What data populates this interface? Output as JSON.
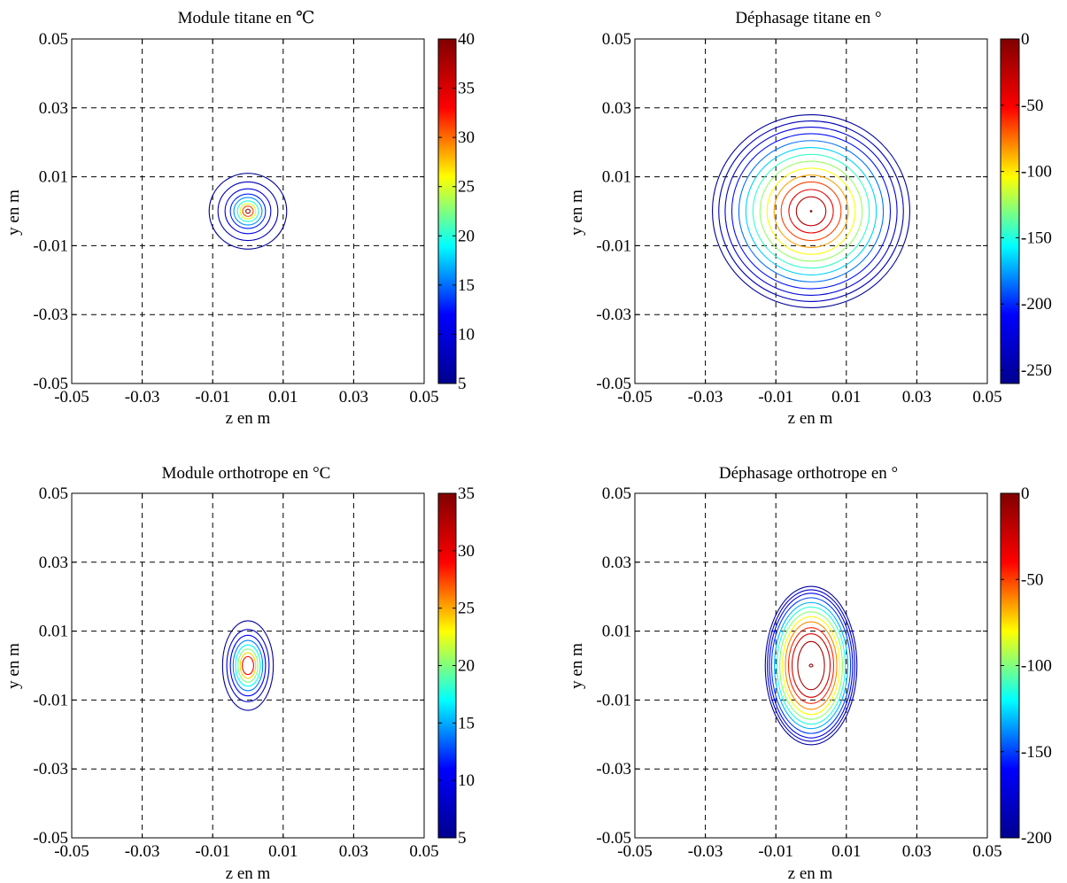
{
  "figure": {
    "colormap": "jet",
    "colormap_stops": [
      "#00008f",
      "#0000ff",
      "#00ffff",
      "#ffff00",
      "#ff0000",
      "#800000"
    ]
  },
  "chart_data": [
    {
      "type": "contour",
      "title": "Module titane en ℃",
      "xlabel": "z en m",
      "ylabel": "y en m",
      "xlim": [
        -0.05,
        0.05
      ],
      "ylim": [
        -0.05,
        0.05
      ],
      "xticks": [
        "-0.05",
        "-0.03",
        "-0.01",
        "0.01",
        "0.03",
        "0.05"
      ],
      "yticks": [
        "-0.05",
        "-0.03",
        "-0.01",
        "0.01",
        "0.03",
        "0.05"
      ],
      "grid": true,
      "colorbar": {
        "min": 5,
        "max": 40,
        "ticks": [
          "40",
          "35",
          "30",
          "25",
          "20",
          "15",
          "10",
          "5"
        ],
        "tick_values": [
          40,
          35,
          30,
          25,
          20,
          15,
          10,
          5
        ]
      },
      "contours": [
        {
          "level": 5,
          "rz": 0.011,
          "ry": 0.011
        },
        {
          "level": 7.5,
          "rz": 0.0085,
          "ry": 0.0085
        },
        {
          "level": 10,
          "rz": 0.0065,
          "ry": 0.0065
        },
        {
          "level": 13,
          "rz": 0.005,
          "ry": 0.005
        },
        {
          "level": 16,
          "rz": 0.004,
          "ry": 0.004
        },
        {
          "level": 20,
          "rz": 0.003,
          "ry": 0.003
        },
        {
          "level": 25,
          "rz": 0.0022,
          "ry": 0.0022
        },
        {
          "level": 31,
          "rz": 0.0015,
          "ry": 0.0015
        },
        {
          "level": 39,
          "rz": 0.0006,
          "ry": 0.0006
        }
      ]
    },
    {
      "type": "contour",
      "title": "Déphasage titane en °",
      "xlabel": "z en m",
      "ylabel": "y en m",
      "xlim": [
        -0.05,
        0.05
      ],
      "ylim": [
        -0.05,
        0.05
      ],
      "xticks": [
        "-0.05",
        "-0.03",
        "-0.01",
        "0.01",
        "0.03",
        "0.05"
      ],
      "yticks": [
        "-0.05",
        "-0.03",
        "-0.01",
        "0.01",
        "0.03",
        "0.05"
      ],
      "grid": true,
      "colorbar": {
        "min": -260,
        "max": 0,
        "ticks": [
          "0",
          "-50",
          "-100",
          "-150",
          "-200",
          "-250"
        ],
        "tick_values": [
          0,
          -50,
          -100,
          -150,
          -200,
          -250
        ]
      },
      "contours": [
        {
          "level": -255,
          "rz": 0.028,
          "ry": 0.028
        },
        {
          "level": -240,
          "rz": 0.0262,
          "ry": 0.0262
        },
        {
          "level": -225,
          "rz": 0.0244,
          "ry": 0.0244
        },
        {
          "level": -205,
          "rz": 0.0225,
          "ry": 0.0225
        },
        {
          "level": -185,
          "rz": 0.0205,
          "ry": 0.0205
        },
        {
          "level": -165,
          "rz": 0.0185,
          "ry": 0.0185
        },
        {
          "level": -145,
          "rz": 0.0165,
          "ry": 0.0165
        },
        {
          "level": -125,
          "rz": 0.0145,
          "ry": 0.0145
        },
        {
          "level": -105,
          "rz": 0.0125,
          "ry": 0.0125
        },
        {
          "level": -85,
          "rz": 0.0105,
          "ry": 0.0105
        },
        {
          "level": -65,
          "rz": 0.0085,
          "ry": 0.0085
        },
        {
          "level": -45,
          "rz": 0.0063,
          "ry": 0.0063
        },
        {
          "level": -25,
          "rz": 0.0042,
          "ry": 0.0042
        },
        {
          "level": -3,
          "rz": 0.0002,
          "ry": 0.0002
        }
      ]
    },
    {
      "type": "contour",
      "title": "Module orthotrope en °C",
      "xlabel": "z en m",
      "ylabel": "y en m",
      "xlim": [
        -0.05,
        0.05
      ],
      "ylim": [
        -0.05,
        0.05
      ],
      "xticks": [
        "-0.05",
        "-0.03",
        "-0.01",
        "0.01",
        "0.03",
        "0.05"
      ],
      "yticks": [
        "-0.05",
        "-0.03",
        "-0.01",
        "0.01",
        "0.03",
        "0.05"
      ],
      "grid": true,
      "colorbar": {
        "min": 5,
        "max": 35,
        "ticks": [
          "35",
          "30",
          "25",
          "20",
          "15",
          "10",
          "5"
        ],
        "tick_values": [
          35,
          30,
          25,
          20,
          15,
          10,
          5
        ]
      },
      "contours": [
        {
          "level": 5.5,
          "rz": 0.0072,
          "ry": 0.013
        },
        {
          "level": 8,
          "rz": 0.006,
          "ry": 0.0105
        },
        {
          "level": 11,
          "rz": 0.005,
          "ry": 0.0088
        },
        {
          "level": 14,
          "rz": 0.0042,
          "ry": 0.0073
        },
        {
          "level": 17,
          "rz": 0.0035,
          "ry": 0.006
        },
        {
          "level": 20,
          "rz": 0.0028,
          "ry": 0.0048
        },
        {
          "level": 24,
          "rz": 0.0022,
          "ry": 0.0037
        },
        {
          "level": 29,
          "rz": 0.0016,
          "ry": 0.0026
        }
      ]
    },
    {
      "type": "contour",
      "title": "Déphasage orthotrope en °",
      "xlabel": "z en m",
      "ylabel": "y en m",
      "xlim": [
        -0.05,
        0.05
      ],
      "ylim": [
        -0.05,
        0.05
      ],
      "xticks": [
        "-0.05",
        "-0.03",
        "-0.01",
        "0.01",
        "0.03",
        "0.05"
      ],
      "yticks": [
        "-0.05",
        "-0.03",
        "-0.01",
        "0.01",
        "0.03",
        "0.05"
      ],
      "grid": true,
      "colorbar": {
        "min": -200,
        "max": 0,
        "ticks": [
          "0",
          "-50",
          "-100",
          "-150",
          "-200"
        ],
        "tick_values": [
          0,
          -50,
          -100,
          -150,
          -200
        ]
      },
      "contours": [
        {
          "level": -195,
          "rz": 0.013,
          "ry": 0.023
        },
        {
          "level": -182,
          "rz": 0.0124,
          "ry": 0.022
        },
        {
          "level": -168,
          "rz": 0.0118,
          "ry": 0.021
        },
        {
          "level": -150,
          "rz": 0.0112,
          "ry": 0.0197
        },
        {
          "level": -132,
          "rz": 0.0104,
          "ry": 0.0183
        },
        {
          "level": -115,
          "rz": 0.0097,
          "ry": 0.017
        },
        {
          "level": -98,
          "rz": 0.0089,
          "ry": 0.0156
        },
        {
          "level": -80,
          "rz": 0.0081,
          "ry": 0.0142
        },
        {
          "level": -62,
          "rz": 0.0073,
          "ry": 0.0127
        },
        {
          "level": -45,
          "rz": 0.0064,
          "ry": 0.011
        },
        {
          "level": -28,
          "rz": 0.0054,
          "ry": 0.0092
        },
        {
          "level": -12,
          "rz": 0.0038,
          "ry": 0.007
        },
        {
          "level": -3,
          "rz": 0.0005,
          "ry": 0.0004
        }
      ]
    }
  ]
}
